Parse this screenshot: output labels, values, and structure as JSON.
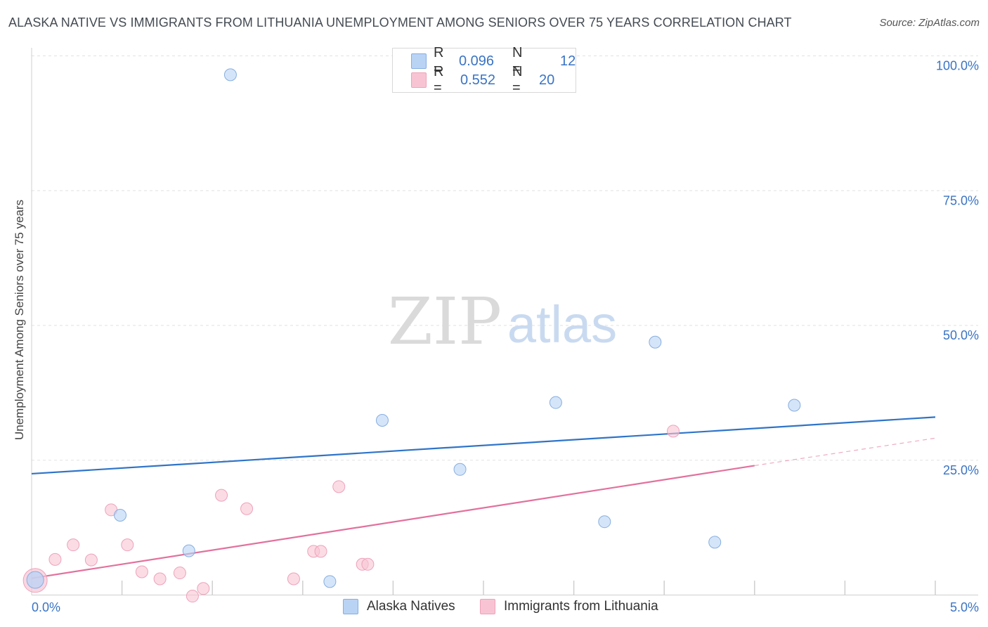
{
  "title": "ALASKA NATIVE VS IMMIGRANTS FROM LITHUANIA UNEMPLOYMENT AMONG SENIORS OVER 75 YEARS CORRELATION CHART",
  "source": "Source: ZipAtlas.com",
  "watermark": {
    "zip": "ZIP",
    "atlas": "atlas"
  },
  "legend": {
    "series1": {
      "r_key": "R =",
      "r_val": "0.096",
      "n_key": "N =",
      "n_val": "12"
    },
    "series2": {
      "r_key": "R =",
      "r_val": "0.552",
      "n_key": "N =",
      "n_val": "20"
    }
  },
  "colors": {
    "blue_fill": "#b9d3f5",
    "blue_stroke": "#86aee0",
    "blue_line": "#2f74c8",
    "pink_fill": "#f8c4d4",
    "pink_stroke": "#eea2ba",
    "pink_line": "#e2719b",
    "tick_text": "#3a74c4",
    "grid": "#e2e2e2"
  },
  "chart_data": {
    "type": "scatter",
    "title": "ALASKA NATIVE VS IMMIGRANTS FROM LITHUANIA UNEMPLOYMENT AMONG SENIORS OVER 75 YEARS CORRELATION CHART",
    "xlabel": "",
    "ylabel": "Unemployment Among Seniors over 75 years",
    "xlim": [
      0,
      5
    ],
    "ylim": [
      0,
      100
    ],
    "x_tick_labels": [
      "0.0%",
      "5.0%"
    ],
    "y_ticks": [
      25,
      50,
      75,
      100
    ],
    "y_tick_labels": [
      "25.0%",
      "50.0%",
      "75.0%",
      "100.0%"
    ],
    "grid": true,
    "legend_position": "bottom-center",
    "series": [
      {
        "name": "Alaska Natives",
        "color": "#b9d3f5",
        "points": [
          {
            "x": 0.02,
            "y": 2.8
          },
          {
            "x": 0.49,
            "y": 14.8
          },
          {
            "x": 0.87,
            "y": 8.2
          },
          {
            "x": 1.1,
            "y": 96.5
          },
          {
            "x": 1.65,
            "y": 2.5
          },
          {
            "x": 1.94,
            "y": 32.4
          },
          {
            "x": 2.37,
            "y": 23.3
          },
          {
            "x": 2.9,
            "y": 35.7
          },
          {
            "x": 3.17,
            "y": 13.6
          },
          {
            "x": 3.45,
            "y": 46.9
          },
          {
            "x": 3.78,
            "y": 9.8
          },
          {
            "x": 4.22,
            "y": 35.2
          }
        ],
        "trend": {
          "x0": 0.0,
          "y0": 22.5,
          "x1": 5.0,
          "y1": 33.0
        }
      },
      {
        "name": "Immigrants from Lithuania",
        "color": "#f8c4d4",
        "points": [
          {
            "x": 0.02,
            "y": 2.6
          },
          {
            "x": 0.13,
            "y": 6.6
          },
          {
            "x": 0.23,
            "y": 9.3
          },
          {
            "x": 0.33,
            "y": 6.5
          },
          {
            "x": 0.44,
            "y": 15.8
          },
          {
            "x": 0.53,
            "y": 9.3
          },
          {
            "x": 0.61,
            "y": 4.3
          },
          {
            "x": 0.71,
            "y": 3.0
          },
          {
            "x": 0.82,
            "y": 4.1
          },
          {
            "x": 0.89,
            "y": -0.2
          },
          {
            "x": 0.95,
            "y": 1.2
          },
          {
            "x": 1.05,
            "y": 18.5
          },
          {
            "x": 1.19,
            "y": 16.0
          },
          {
            "x": 1.45,
            "y": 3.0
          },
          {
            "x": 1.56,
            "y": 8.1
          },
          {
            "x": 1.6,
            "y": 8.1
          },
          {
            "x": 1.7,
            "y": 20.1
          },
          {
            "x": 1.83,
            "y": 5.7
          },
          {
            "x": 1.86,
            "y": 5.7
          },
          {
            "x": 3.55,
            "y": 30.4
          }
        ],
        "trend": {
          "x0": 0.0,
          "y0": 3.1,
          "x1": 4.0,
          "y1": 24.0,
          "dash_to_x": 5.0,
          "dash_to_y": 29.1
        }
      }
    ]
  }
}
